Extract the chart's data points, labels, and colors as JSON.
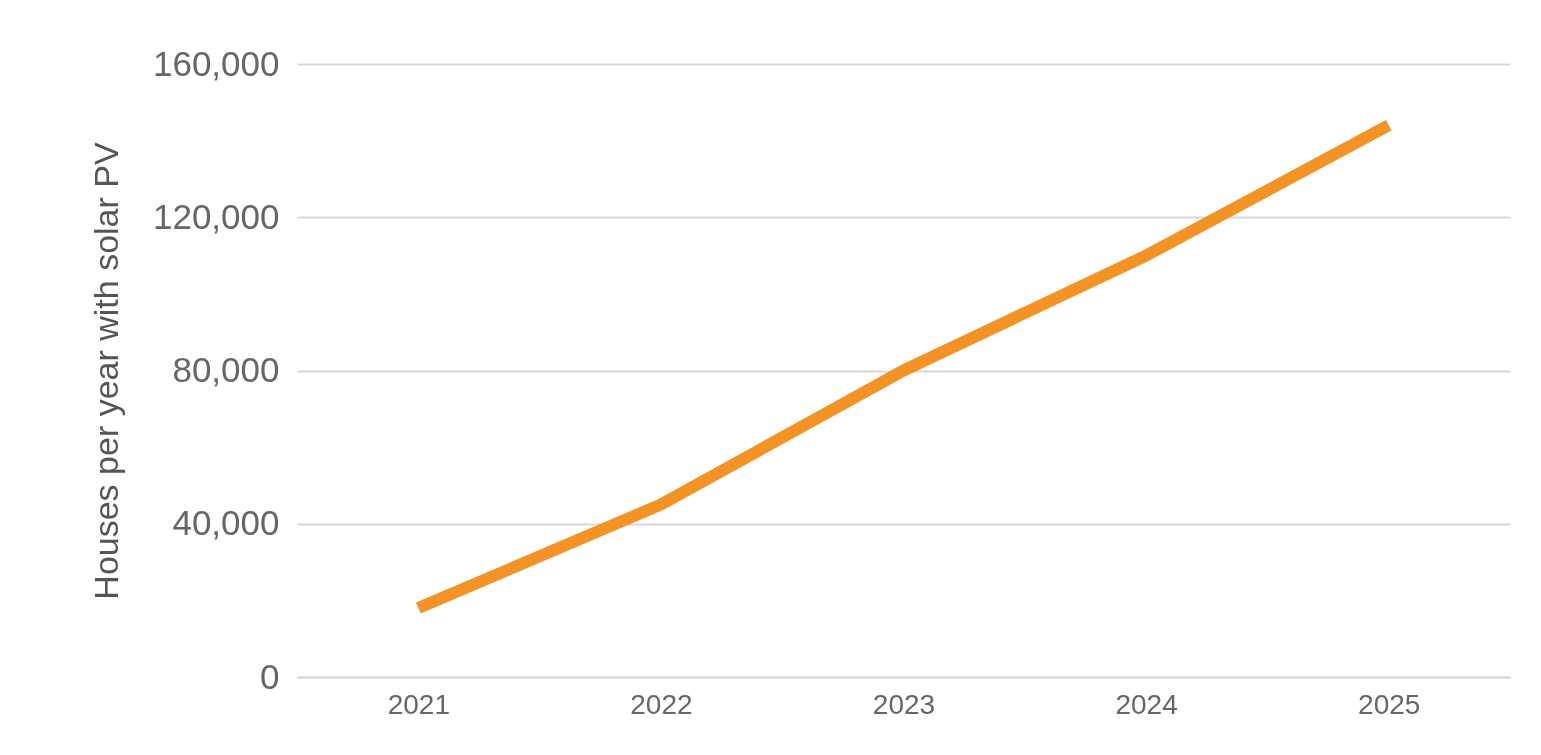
{
  "chart_data": {
    "type": "line",
    "ylabel": "Houses per year with solar PV",
    "categories": [
      "2021",
      "2022",
      "2023",
      "2024",
      "2025"
    ],
    "series": [
      {
        "color": "#f39325",
        "values": [
          18000,
          45000,
          80000,
          110000,
          144000
        ]
      }
    ],
    "ylim": [
      0,
      160000
    ],
    "yticks": [
      {
        "value": 0,
        "label": "0"
      },
      {
        "value": 40000,
        "label": "40,000"
      },
      {
        "value": 80000,
        "label": "80,000"
      },
      {
        "value": 120000,
        "label": "120,000"
      },
      {
        "value": 160000,
        "label": "160,000"
      }
    ],
    "grid": "y",
    "marker": "none",
    "line_style": "solid"
  }
}
